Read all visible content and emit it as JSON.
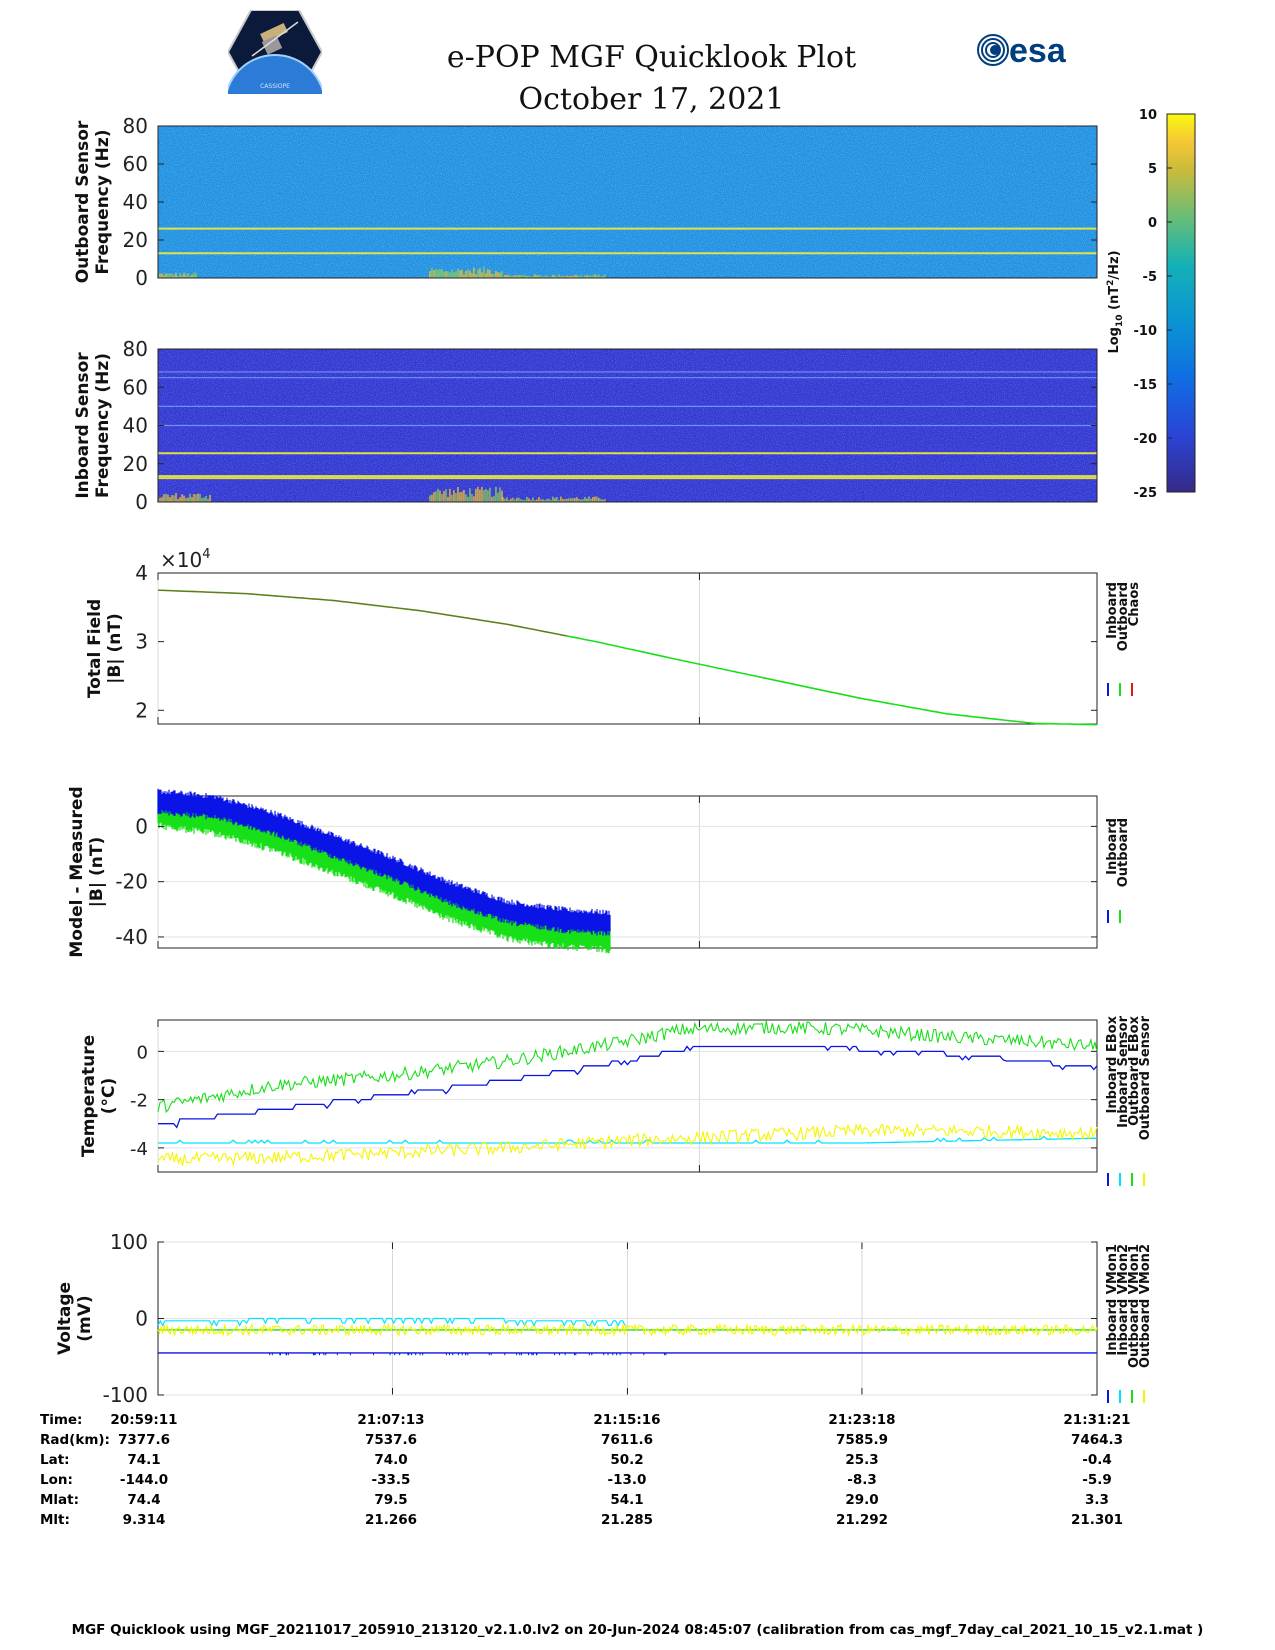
{
  "title": {
    "line1": "e-POP MGF Quicklook Plot",
    "line2": "October 17, 2021"
  },
  "logos": {
    "left": {
      "icon": "cassiope-satellite-logo",
      "text": "CASSIOPE"
    },
    "right": {
      "icon": "esa-logo",
      "text": "esa"
    }
  },
  "colors": {
    "inboard": "#0a14e6",
    "outboard": "#18e018",
    "chaos": "#e01818",
    "inboard_ebox": "#0a14e6",
    "inboard_sensor": "#00e5ff",
    "outboard_ebox": "#18e018",
    "outboard_sensor": "#f5f500",
    "spectral_line": "#e8e840"
  },
  "colorbar": {
    "label": "Log10 (nT²/Hz)",
    "ticks": [
      "10",
      "5",
      "0",
      "-5",
      "-10",
      "-15",
      "-20",
      "-25"
    ],
    "range": [
      -25,
      10
    ]
  },
  "chart_data": [
    {
      "type": "heatmap",
      "name": "outboard-spectrogram",
      "ylabel": [
        "Outboard Sensor",
        "Frequency (Hz)"
      ],
      "ylim": [
        0,
        80
      ],
      "yticks": [
        "80",
        "60",
        "40",
        "20",
        "0"
      ],
      "background_level": -14,
      "spectral_lines_hz": [
        13,
        26
      ],
      "noise_bursts": [
        {
          "time": [
            "20:59:11",
            "21:00:30"
          ],
          "freq_max_hz": 3
        },
        {
          "time": [
            "21:08:30",
            "21:11:00"
          ],
          "freq_max_hz": 6
        },
        {
          "time": [
            "21:11:00",
            "21:14:30"
          ],
          "freq_max_hz": 2
        }
      ]
    },
    {
      "type": "heatmap",
      "name": "inboard-spectrogram",
      "ylabel": [
        "Inboard Sensor",
        "Frequency (Hz)"
      ],
      "ylim": [
        0,
        80
      ],
      "yticks": [
        "80",
        "60",
        "40",
        "20",
        "0"
      ],
      "background_level": -20,
      "spectral_lines_hz": [
        12.5,
        13.5,
        25.5,
        40,
        50,
        65,
        68
      ],
      "noise_bursts": [
        {
          "time": [
            "20:59:11",
            "21:01:00"
          ],
          "freq_max_hz": 5
        },
        {
          "time": [
            "21:08:30",
            "21:11:00"
          ],
          "freq_max_hz": 8
        },
        {
          "time": [
            "21:11:00",
            "21:14:30"
          ],
          "freq_max_hz": 3
        }
      ]
    },
    {
      "type": "line",
      "name": "total-field",
      "ylabel": [
        "Total Field",
        "|B| (nT)"
      ],
      "ylim": [
        1.8,
        4
      ],
      "yticks": [
        "4",
        "3",
        "2"
      ],
      "exponent_label": "×10",
      "exponent_power": "4",
      "xgrid_times": [
        "20:59:11",
        "21:17:44"
      ],
      "legend": [
        "Inboard",
        "Outboard",
        "Chaos"
      ],
      "series": [
        {
          "name": "Outboard",
          "color_key": "outboard",
          "x_min": [
            0,
            3,
            6,
            9,
            12,
            15,
            18,
            21,
            24,
            27,
            30,
            32.17
          ],
          "y_e4": [
            3.75,
            3.7,
            3.6,
            3.45,
            3.25,
            3.0,
            2.72,
            2.45,
            2.18,
            1.95,
            1.81,
            1.79
          ]
        },
        {
          "name": "Chaos",
          "color_key": "chaos",
          "x_max_min": 14
        }
      ]
    },
    {
      "type": "line",
      "name": "model-minus-measured",
      "ylabel": [
        "Model - Measured",
        "|B| (nT)"
      ],
      "ylim": [
        -44,
        11
      ],
      "yticks": [
        "0",
        "-20",
        "-40"
      ],
      "xgrid_times": [
        "20:59:11",
        "21:17:44"
      ],
      "legend": [
        "Inboard",
        "Outboard"
      ],
      "series": [
        {
          "name": "Inboard",
          "color_key": "inboard",
          "band": 4,
          "x_min": [
            0,
            2,
            4,
            6,
            8,
            10,
            12,
            14,
            15.5
          ],
          "y": [
            9,
            7,
            1,
            -7,
            -15,
            -24,
            -31,
            -34,
            -35
          ]
        },
        {
          "name": "Outboard",
          "color_key": "outboard",
          "band": 5,
          "x_min": [
            0,
            2,
            4,
            6,
            8,
            10,
            12,
            14,
            15.5
          ],
          "y": [
            5,
            2,
            -4,
            -12,
            -20,
            -29,
            -36,
            -39,
            -40
          ]
        }
      ]
    },
    {
      "type": "line",
      "name": "temperature",
      "ylabel": [
        "Temperature",
        "(°C)"
      ],
      "ylim": [
        -5,
        1.3
      ],
      "yticks": [
        "0",
        "-2",
        "-4"
      ],
      "xgrid_times": [
        "20:59:11",
        "21:17:44"
      ],
      "legend": [
        "Inboard EBox",
        "Inboard Sensor",
        "Outboard EBox",
        "Outboard Sensor"
      ],
      "series": [
        {
          "name": "Inboard EBox",
          "color_key": "inboard_ebox",
          "x_min": [
            0,
            4,
            8,
            12,
            16,
            18.5,
            22,
            26,
            29,
            32.17
          ],
          "y": [
            -3.0,
            -2.4,
            -1.8,
            -1.2,
            -0.4,
            0.2,
            0.2,
            0.0,
            -0.3,
            -0.7
          ]
        },
        {
          "name": "Inboard Sensor",
          "color_key": "inboard_sensor",
          "x_min": [
            0,
            6,
            12,
            18,
            24,
            28,
            32.17
          ],
          "y": [
            -3.8,
            -3.8,
            -3.8,
            -3.8,
            -3.8,
            -3.7,
            -3.6
          ]
        },
        {
          "name": "Outboard EBox",
          "color_key": "outboard_ebox",
          "x_min": [
            0,
            4,
            8,
            12,
            16,
            18,
            21,
            24,
            27,
            30,
            32.17
          ],
          "y": [
            -2.3,
            -1.4,
            -1.0,
            -0.4,
            0.4,
            0.9,
            1.0,
            0.9,
            0.6,
            0.4,
            0.2
          ]
        },
        {
          "name": "Outboard Sensor",
          "color_key": "outboard_sensor",
          "x_min": [
            0,
            4,
            8,
            12,
            16,
            20,
            24,
            28,
            32.17
          ],
          "y": [
            -4.5,
            -4.4,
            -4.2,
            -4.0,
            -3.7,
            -3.5,
            -3.3,
            -3.3,
            -3.4
          ]
        }
      ]
    },
    {
      "type": "line",
      "name": "voltage",
      "ylabel": [
        "Voltage",
        "(mV)"
      ],
      "ylim": [
        -100,
        100
      ],
      "yticks": [
        "100",
        "0",
        "-100"
      ],
      "xgrid_times": [
        "21:07:13",
        "21:15:16",
        "21:23:18"
      ],
      "legend": [
        "Inboard VMon1",
        "Inboard VMon2",
        "Outboard VMon1",
        "Outboard VMon2"
      ],
      "series": [
        {
          "name": "Inboard VMon1",
          "color_key": "inboard",
          "y": -45
        },
        {
          "name": "Inboard VMon2",
          "color_key": "inboard_sensor",
          "y": -3,
          "x_max_min": 16
        },
        {
          "name": "Outboard VMon1",
          "color_key": "outboard",
          "y": -15
        },
        {
          "name": "Outboard VMon2",
          "color_key": "outboard_sensor",
          "y": -15
        }
      ]
    }
  ],
  "time_axis": {
    "start_min": 0,
    "end_min": 32.17,
    "rows": [
      {
        "label": "Time:",
        "values": [
          "20:59:11",
          "21:07:13",
          "21:15:16",
          "21:23:18",
          "21:31:21"
        ]
      },
      {
        "label": "Rad(km):",
        "values": [
          "7377.6",
          "7537.6",
          "7611.6",
          "7585.9",
          "7464.3"
        ]
      },
      {
        "label": "Lat:",
        "values": [
          "74.1",
          "74.0",
          "50.2",
          "25.3",
          "-0.4"
        ]
      },
      {
        "label": "Lon:",
        "values": [
          "-144.0",
          "-33.5",
          "-13.0",
          "-8.3",
          "-5.9"
        ]
      },
      {
        "label": "Mlat:",
        "values": [
          "74.4",
          "79.5",
          "54.1",
          "29.0",
          "3.3"
        ]
      },
      {
        "label": "Mlt:",
        "values": [
          "9.314",
          "21.266",
          "21.285",
          "21.292",
          "21.301"
        ]
      }
    ]
  },
  "footer": "MGF Quicklook using MGF_20211017_205910_213120_v2.1.0.lv2 on 20-Jun-2024 08:45:07 (calibration from cas_mgf_7day_cal_2021_10_15_v2.1.mat )"
}
